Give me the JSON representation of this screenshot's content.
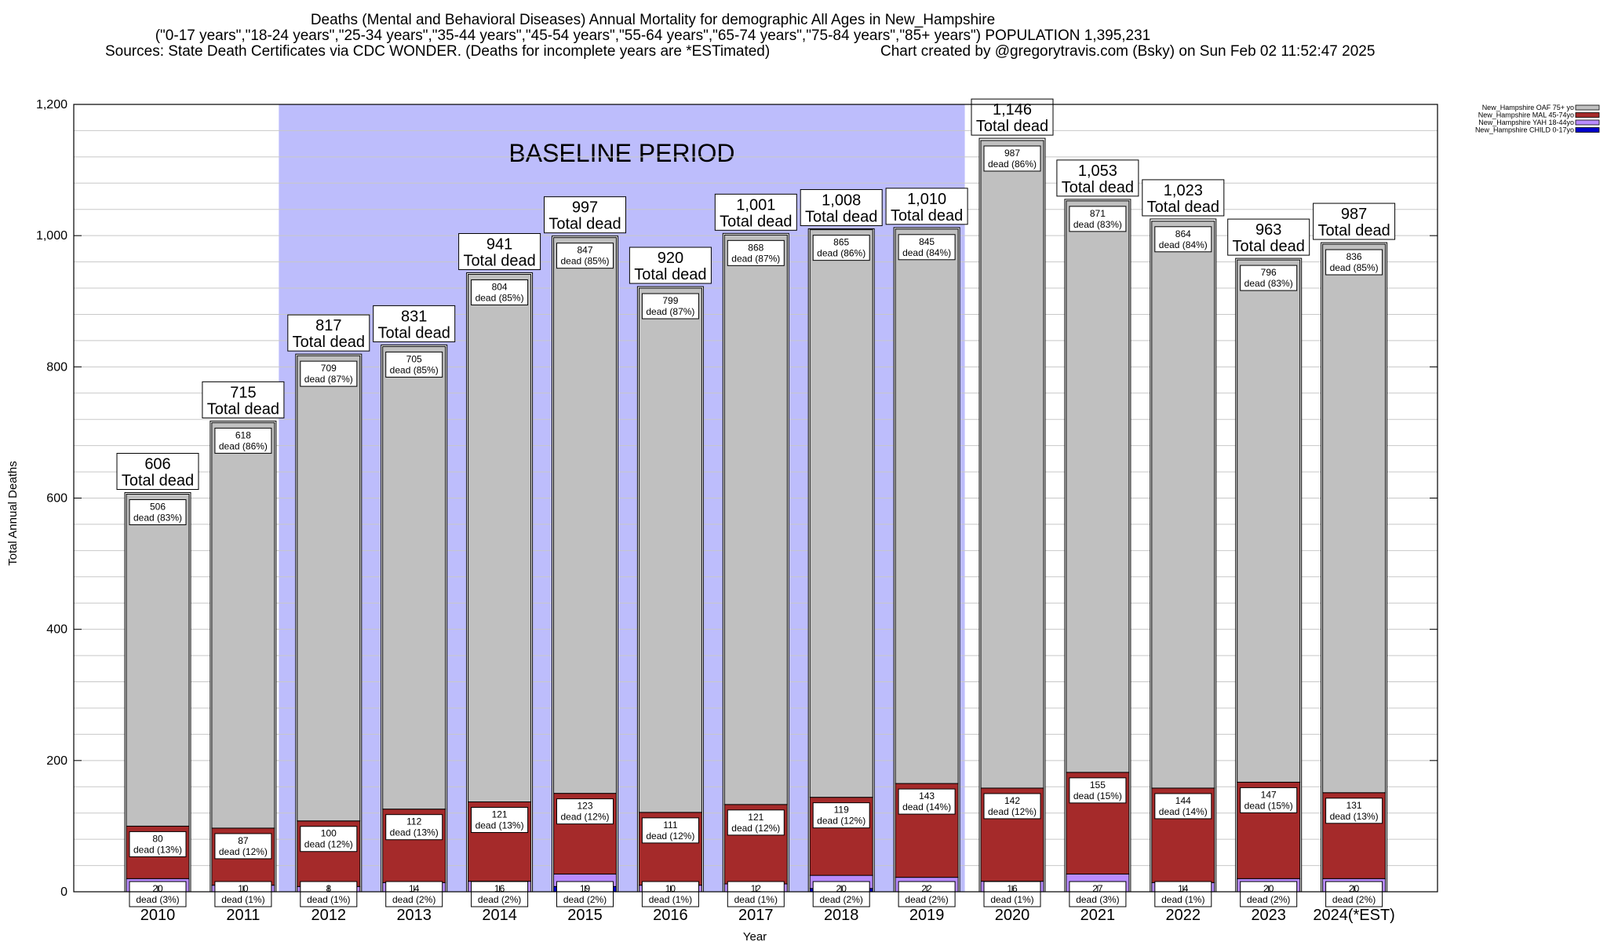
{
  "title": {
    "line1": "Deaths (Mental and Behavioral Diseases) Annual Mortality for demographic All Ages in New_Hampshire",
    "line2": "(\"0-17 years\",\"18-24 years\",\"25-34 years\",\"35-44 years\",\"45-54 years\",\"55-64 years\",\"65-74 years\",\"75-84 years\",\"85+ years\") POPULATION 1,395,231",
    "line3_left": "Sources: State Death Certificates via CDC WONDER. (Deaths for incomplete years are *ESTimated)",
    "line3_right": "Chart created by @gregorytravis.com (Bsky) on Sun Feb 02 11:52:47 2025"
  },
  "baseline_label": "BASELINE PERIOD",
  "total_word": "Total dead",
  "dead_word": "dead",
  "chart_data": {
    "type": "bar",
    "stacked": true,
    "categories": [
      "2010",
      "2011",
      "2012",
      "2013",
      "2014",
      "2015",
      "2016",
      "2017",
      "2018",
      "2019",
      "2020",
      "2021",
      "2022",
      "2023",
      "2024(*EST)"
    ],
    "xlabel": "Year",
    "ylabel": "Total Annual Deaths",
    "ylim": [
      0,
      1200
    ],
    "yticks": [
      {
        "v": 0,
        "label": "0"
      },
      {
        "v": 200,
        "label": "200"
      },
      {
        "v": 400,
        "label": "400"
      },
      {
        "v": 600,
        "label": "600"
      },
      {
        "v": 800,
        "label": "800"
      },
      {
        "v": 1000,
        "label": "1,000"
      },
      {
        "v": 1200,
        "label": "1,200"
      }
    ],
    "grid": true,
    "legend_position": "top-right",
    "baseline_period": {
      "from": "2012",
      "to": "2019"
    },
    "totals": [
      606,
      715,
      817,
      831,
      941,
      997,
      920,
      1001,
      1008,
      1010,
      1146,
      1053,
      1023,
      963,
      987
    ],
    "totals_labels": [
      "606",
      "715",
      "817",
      "831",
      "941",
      "997",
      "920",
      "1,001",
      "1,008",
      "1,010",
      "1,146",
      "1,053",
      "1,023",
      "963",
      "987"
    ],
    "series": [
      {
        "name": "New_Hampshire CHILD 0-17yo",
        "color": "#0000cc",
        "values": [
          0,
          0,
          0,
          0,
          0,
          8,
          0,
          0,
          5,
          0,
          0,
          0,
          0,
          0,
          0
        ],
        "labels": [
          null,
          null,
          null,
          null,
          null,
          null,
          null,
          null,
          null,
          null,
          null,
          null,
          null,
          null,
          null
        ]
      },
      {
        "name": "New_Hampshire YAH 18-44yo",
        "color": "#b98cff",
        "values": [
          20,
          10,
          8,
          14,
          16,
          19,
          10,
          12,
          20,
          22,
          16,
          27,
          14,
          20,
          20
        ],
        "labels": [
          "20\ndead (3%)",
          "10\ndead (1%)",
          "8\ndead (1%)",
          "14\ndead (2%)",
          "16\ndead (2%)",
          "19\ndead (2%)",
          "10\ndead (1%)",
          "12\ndead (1%)",
          "20\ndead (2%)",
          "22\ndead (2%)",
          "16\ndead (1%)",
          "27\ndead (3%)",
          "14\ndead (1%)",
          "20\ndead (2%)",
          "20\ndead (2%)"
        ]
      },
      {
        "name": "New_Hampshire MAL 45-74yo",
        "color": "#a52a2a",
        "values": [
          80,
          87,
          100,
          112,
          121,
          123,
          111,
          121,
          119,
          143,
          142,
          155,
          144,
          147,
          131
        ],
        "labels": [
          "80\ndead (13%)",
          "87\ndead (12%)",
          "100\ndead (12%)",
          "112\ndead (13%)",
          "121\ndead (13%)",
          "123\ndead (12%)",
          "111\ndead (12%)",
          "121\ndead (12%)",
          "119\ndead (12%)",
          "143\ndead (14%)",
          "142\ndead (12%)",
          "155\ndead (15%)",
          "144\ndead (14%)",
          "147\ndead (15%)",
          "131\ndead (13%)"
        ]
      },
      {
        "name": "New_Hampshire OAF 75+ yo",
        "color": "#c0c0c0",
        "values": [
          506,
          618,
          709,
          705,
          804,
          847,
          799,
          868,
          865,
          845,
          987,
          871,
          864,
          796,
          836
        ],
        "labels": [
          "506\ndead (83%)",
          "618\ndead (86%)",
          "709\ndead (87%)",
          "705\ndead (85%)",
          "804\ndead (85%)",
          "847\ndead (85%)",
          "799\ndead (87%)",
          "868\ndead (87%)",
          "865\ndead (86%)",
          "845\ndead (84%)",
          "987\ndead (86%)",
          "871\ndead (83%)",
          "864\ndead (84%)",
          "796\ndead (83%)",
          "836\ndead (85%)"
        ]
      }
    ]
  }
}
